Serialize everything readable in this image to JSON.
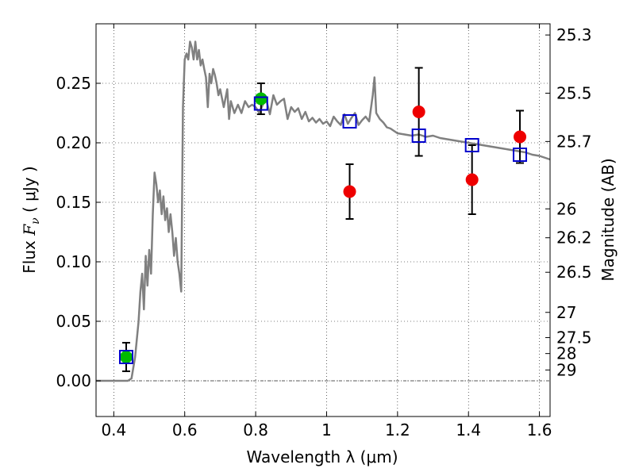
{
  "chart_data": {
    "type": "scatter",
    "xlabel": "Wavelength  λ (μm)",
    "ylabel_parts": {
      "prefix": "Flux ",
      "symbol": "F",
      "subscript": "ν",
      "unit": " ( μJy )"
    },
    "y2label": "Magnitude (AB)",
    "xlim": [
      0.35,
      1.63
    ],
    "ylim": [
      -0.03,
      0.3
    ],
    "grid": true,
    "x_ticks": [
      {
        "value": 0.4,
        "label": "0.4"
      },
      {
        "value": 0.6,
        "label": "0.6"
      },
      {
        "value": 0.8,
        "label": "0.8"
      },
      {
        "value": 1.0,
        "label": "1"
      },
      {
        "value": 1.2,
        "label": "1.2"
      },
      {
        "value": 1.4,
        "label": "1.4"
      },
      {
        "value": 1.6,
        "label": "1.6"
      }
    ],
    "y_ticks": [
      {
        "value": 0.0,
        "label": "0.00"
      },
      {
        "value": 0.05,
        "label": "0.05"
      },
      {
        "value": 0.1,
        "label": "0.10"
      },
      {
        "value": 0.15,
        "label": "0.15"
      },
      {
        "value": 0.2,
        "label": "0.20"
      },
      {
        "value": 0.25,
        "label": "0.25"
      }
    ],
    "mag_ticks": [
      {
        "flux": 0.2906,
        "label": "25.3"
      },
      {
        "flux": 0.2417,
        "label": "25.5"
      },
      {
        "flux": 0.2011,
        "label": "25.7"
      },
      {
        "flux": 0.1445,
        "label": "26"
      },
      {
        "flux": 0.1202,
        "label": "26.2"
      },
      {
        "flux": 0.0912,
        "label": "26.5"
      },
      {
        "flux": 0.0575,
        "label": "27"
      },
      {
        "flux": 0.0363,
        "label": "27.5"
      },
      {
        "flux": 0.0229,
        "label": "28"
      },
      {
        "flux": 0.0091,
        "label": "29"
      }
    ],
    "series": [
      {
        "kind": "sed_model",
        "color": "#808080",
        "x": [
          0.35,
          0.44,
          0.45,
          0.46,
          0.47,
          0.475,
          0.48,
          0.485,
          0.49,
          0.495,
          0.5,
          0.505,
          0.51,
          0.515,
          0.52,
          0.525,
          0.53,
          0.535,
          0.54,
          0.545,
          0.55,
          0.555,
          0.56,
          0.565,
          0.57,
          0.575,
          0.58,
          0.585,
          0.59,
          0.595,
          0.6,
          0.605,
          0.61,
          0.615,
          0.62,
          0.625,
          0.63,
          0.635,
          0.64,
          0.645,
          0.65,
          0.655,
          0.66,
          0.665,
          0.67,
          0.675,
          0.68,
          0.685,
          0.69,
          0.695,
          0.7,
          0.71,
          0.72,
          0.725,
          0.73,
          0.74,
          0.75,
          0.76,
          0.77,
          0.78,
          0.79,
          0.8,
          0.81,
          0.82,
          0.83,
          0.84,
          0.85,
          0.86,
          0.87,
          0.88,
          0.89,
          0.9,
          0.91,
          0.92,
          0.93,
          0.94,
          0.95,
          0.96,
          0.97,
          0.98,
          0.99,
          1.0,
          1.01,
          1.02,
          1.03,
          1.04,
          1.05,
          1.06,
          1.07,
          1.08,
          1.09,
          1.1,
          1.11,
          1.12,
          1.13,
          1.135,
          1.14,
          1.15,
          1.16,
          1.17,
          1.18,
          1.2,
          1.22,
          1.24,
          1.26,
          1.28,
          1.3,
          1.32,
          1.34,
          1.36,
          1.38,
          1.4,
          1.42,
          1.44,
          1.46,
          1.48,
          1.5,
          1.52,
          1.54,
          1.56,
          1.58,
          1.6,
          1.63
        ],
        "y": [
          0.0,
          0.0,
          0.002,
          0.02,
          0.05,
          0.075,
          0.09,
          0.06,
          0.105,
          0.08,
          0.11,
          0.09,
          0.14,
          0.175,
          0.165,
          0.15,
          0.16,
          0.14,
          0.155,
          0.135,
          0.145,
          0.125,
          0.14,
          0.125,
          0.105,
          0.12,
          0.1,
          0.09,
          0.075,
          0.23,
          0.27,
          0.275,
          0.27,
          0.285,
          0.28,
          0.27,
          0.285,
          0.27,
          0.278,
          0.265,
          0.27,
          0.262,
          0.255,
          0.23,
          0.258,
          0.25,
          0.262,
          0.257,
          0.25,
          0.24,
          0.245,
          0.23,
          0.245,
          0.22,
          0.235,
          0.225,
          0.232,
          0.225,
          0.235,
          0.23,
          0.232,
          0.23,
          0.225,
          0.232,
          0.236,
          0.224,
          0.24,
          0.232,
          0.235,
          0.237,
          0.22,
          0.23,
          0.226,
          0.229,
          0.22,
          0.226,
          0.218,
          0.221,
          0.217,
          0.22,
          0.216,
          0.218,
          0.214,
          0.222,
          0.218,
          0.215,
          0.224,
          0.216,
          0.221,
          0.225,
          0.215,
          0.219,
          0.222,
          0.218,
          0.24,
          0.255,
          0.225,
          0.22,
          0.217,
          0.213,
          0.212,
          0.208,
          0.207,
          0.206,
          0.207,
          0.205,
          0.206,
          0.204,
          0.203,
          0.202,
          0.201,
          0.2,
          0.199,
          0.198,
          0.197,
          0.196,
          0.195,
          0.194,
          0.193,
          0.192,
          0.19,
          0.189,
          0.186
        ]
      },
      {
        "kind": "model_photometry",
        "color": "#0000cc",
        "marker": "open-square",
        "x": [
          0.435,
          0.815,
          1.065,
          1.26,
          1.41,
          1.545
        ],
        "y": [
          0.02,
          0.233,
          0.218,
          0.206,
          0.198,
          0.19
        ]
      },
      {
        "kind": "observed_optical",
        "color": "#00bb00",
        "marker": "filled-circle",
        "x": [
          0.435,
          0.815
        ],
        "y": [
          0.02,
          0.237
        ],
        "err": [
          0.012,
          0.013
        ]
      },
      {
        "kind": "observed_nir",
        "color": "#ee0000",
        "marker": "filled-circle",
        "x": [
          1.065,
          1.26,
          1.41,
          1.545
        ],
        "y": [
          0.159,
          0.226,
          0.169,
          0.205
        ],
        "err": [
          0.023,
          0.037,
          0.029,
          0.022
        ]
      }
    ],
    "zero_line": {
      "value": 0.0,
      "color": "#555555"
    }
  }
}
